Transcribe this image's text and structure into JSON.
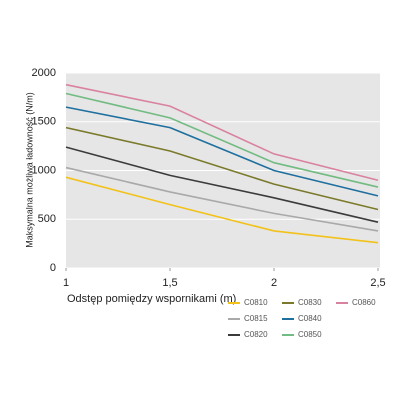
{
  "chart_data": {
    "type": "line",
    "x_label": "Odstęp pomiędzy wspornikami (m)",
    "y_label": "Maksymalna możliwa ładowność (N/m)",
    "x": [
      1,
      1.5,
      2,
      2.5
    ],
    "xlim": [
      1,
      2.5
    ],
    "xticks": [
      1,
      {
        "value": 1.5,
        "label": "1,5"
      },
      2,
      {
        "value": 2.5,
        "label": "2,5"
      }
    ],
    "ylim": [
      0,
      2000
    ],
    "yticks": [
      0,
      500,
      1000,
      1500,
      2000
    ],
    "grid": true,
    "series": [
      {
        "name": "C0810",
        "color": "#f2c21b",
        "values": [
          930,
          650,
          380,
          260
        ]
      },
      {
        "name": "C0815",
        "color": "#a9a9a9",
        "values": [
          1030,
          780,
          560,
          380
        ]
      },
      {
        "name": "C0820",
        "color": "#3b3b3b",
        "values": [
          1240,
          950,
          720,
          470
        ]
      },
      {
        "name": "C0830",
        "color": "#7b7a2c",
        "values": [
          1440,
          1200,
          860,
          600
        ]
      },
      {
        "name": "C0840",
        "color": "#1f6f9f",
        "values": [
          1650,
          1440,
          1000,
          740
        ]
      },
      {
        "name": "C0850",
        "color": "#72bb82",
        "values": [
          1790,
          1540,
          1080,
          830
        ]
      },
      {
        "name": "C0860",
        "color": "#d9829f",
        "values": [
          1880,
          1660,
          1170,
          900
        ]
      }
    ]
  }
}
